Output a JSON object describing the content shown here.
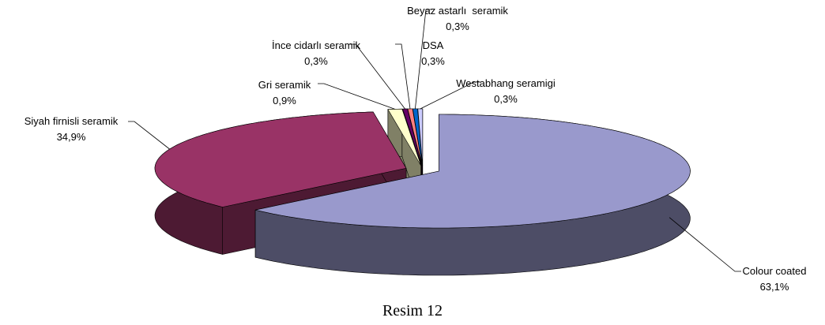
{
  "chart_data": {
    "type": "pie3d",
    "caption": "Resim 12",
    "categories": [
      "Colour coated",
      "Siyah firnisli seramik",
      "Gri seramik",
      "İnce cidarlı seramik",
      "DSA",
      "Beyaz astarlı  seramik",
      "Westabhang seramigi"
    ],
    "values": [
      63.1,
      34.9,
      0.9,
      0.3,
      0.3,
      0.3,
      0.3
    ],
    "value_labels": [
      "63,1%",
      "34,9%",
      "0,9%",
      "0,3%",
      "0,3%",
      "0,3%",
      "0,3%"
    ],
    "colors": [
      "#9999cc",
      "#993366",
      "#ffffcc",
      "#660066",
      "#ff8080",
      "#0066cc",
      "#ccccff"
    ]
  }
}
